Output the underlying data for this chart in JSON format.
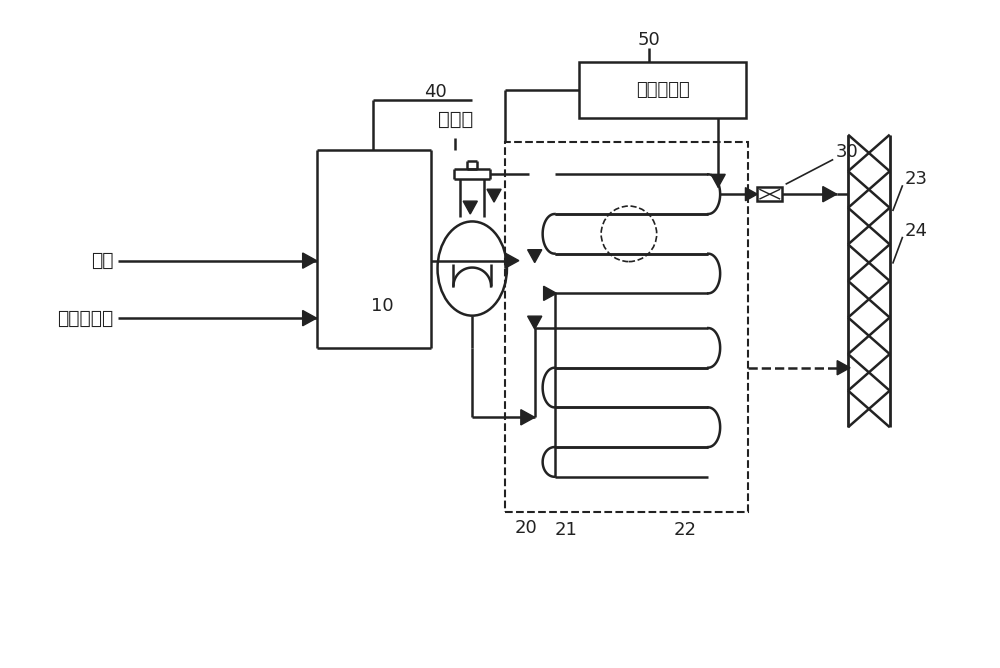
{
  "title": "",
  "bg_color": "#ffffff",
  "line_color": "#222222",
  "text_color": "#222222",
  "labels": {
    "acetone": "丙酮",
    "acetylene_amine": "乙炔氨溶液",
    "catalyst": "催化剂",
    "terminator": "反应终止剂",
    "num_10": "10",
    "num_20": "20",
    "num_21": "21",
    "num_22": "22",
    "num_23": "23",
    "num_24": "24",
    "num_30": "30",
    "num_40": "40",
    "num_50": "50"
  }
}
